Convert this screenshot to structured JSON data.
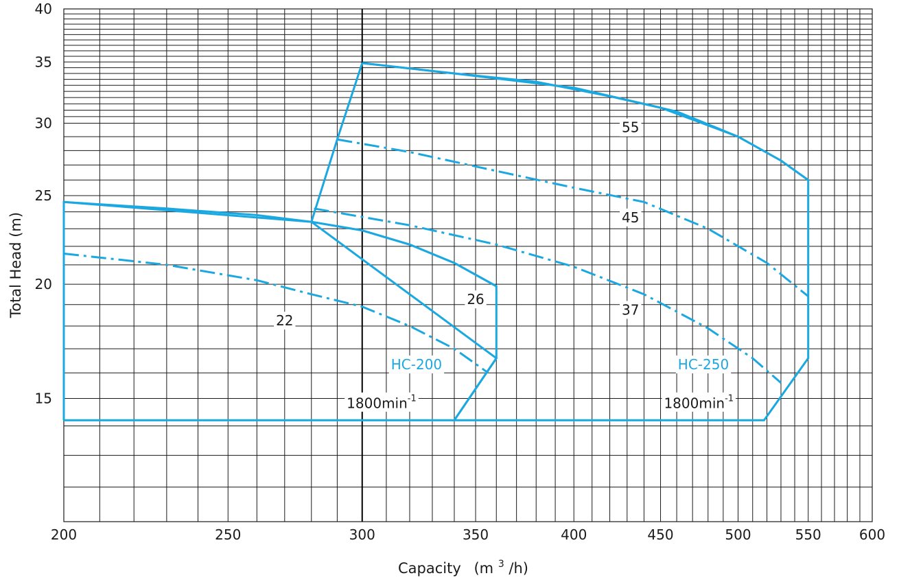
{
  "chart_data": {
    "type": "line",
    "title": "",
    "xlabel": "Capacity",
    "xlabel_unit_base": "(m",
    "xlabel_unit_sup": "3",
    "xlabel_unit_tail": "/h)",
    "ylabel": "Total  Head (m)",
    "xscale": "log",
    "yscale": "log",
    "xlim": [
      200,
      600
    ],
    "ylim": [
      11,
      40
    ],
    "grid": true,
    "x_ticks": [
      200,
      250,
      300,
      350,
      400,
      450,
      500,
      550,
      600
    ],
    "x_tick_labels": [
      "200",
      "250",
      "300",
      "350",
      "400",
      "450",
      "500",
      "550",
      "600"
    ],
    "y_ticks": [
      15,
      20,
      25,
      30,
      35,
      40
    ],
    "y_tick_labels": [
      "15",
      "20",
      "25",
      "30",
      "35",
      "40"
    ],
    "x_minor_grid": [
      210,
      220,
      230,
      240,
      250,
      260,
      270,
      280,
      290,
      300,
      310,
      320,
      330,
      340,
      350,
      360,
      370,
      380,
      390,
      400,
      410,
      420,
      430,
      440,
      450,
      460,
      470,
      480,
      490,
      500,
      510,
      520,
      530,
      540,
      550,
      560,
      570,
      580,
      590,
      600
    ],
    "y_minor_grid": [
      11,
      12,
      13,
      14,
      15,
      16,
      17,
      18,
      19,
      20,
      21,
      22,
      23,
      24,
      25,
      26,
      27,
      28,
      29,
      30,
      31,
      32,
      33,
      34,
      35,
      36,
      37,
      38,
      39,
      40
    ],
    "y_fine_grid": [
      30.5,
      31.5,
      32.5,
      33.5,
      34.5,
      35.5,
      36.5,
      37.5,
      38.5,
      39.5
    ],
    "accent_line_x": 300,
    "colors": {
      "series": "#1ba8e0",
      "grid": "#1a1a1a",
      "text": "#1a1a1a"
    },
    "series": [
      {
        "name": "HC-200",
        "speed_label": "1800min",
        "speed_sup": "-1",
        "color": "#1ba8e0",
        "label_at": [
          323,
          16.3
        ],
        "speed_at": [
          308,
          14.8
        ],
        "envelope": [
          [
            200,
            14.2
          ],
          [
            200,
            24.6
          ],
          [
            280,
            23.4
          ],
          [
            300,
            22.9
          ],
          [
            320,
            22.1
          ],
          [
            340,
            21.1
          ],
          [
            360,
            19.9
          ],
          [
            360,
            16.6
          ],
          [
            340,
            14.2
          ],
          [
            200,
            14.2
          ]
        ],
        "curves": [
          {
            "label": "26",
            "label_at": [
              350,
              19.2
            ],
            "dashed": false,
            "points": [
              [
                200,
                24.6
              ],
              [
                230,
                24.2
              ],
              [
                260,
                23.8
              ],
              [
                280,
                23.4
              ],
              [
                300,
                22.9
              ],
              [
                320,
                22.1
              ],
              [
                340,
                21.1
              ],
              [
                360,
                19.9
              ]
            ]
          },
          {
            "label": "22",
            "label_at": [
              270,
              18.2
            ],
            "dashed": true,
            "points": [
              [
                200,
                21.6
              ],
              [
                230,
                21.0
              ],
              [
                260,
                20.2
              ],
              [
                280,
                19.5
              ],
              [
                300,
                18.9
              ],
              [
                320,
                18.0
              ],
              [
                340,
                17.0
              ],
              [
                356,
                16.0
              ]
            ]
          }
        ]
      },
      {
        "name": "HC-250",
        "speed_label": "1800min",
        "speed_sup": "-1",
        "color": "#1ba8e0",
        "label_at": [
          477,
          16.3
        ],
        "speed_at": [
          474,
          14.8
        ],
        "envelope": [
          [
            300,
            34.9
          ],
          [
            340,
            34.0
          ],
          [
            400,
            32.8
          ],
          [
            450,
            31.2
          ],
          [
            500,
            29.0
          ],
          [
            530,
            27.3
          ],
          [
            550,
            26.0
          ],
          [
            550,
            16.6
          ],
          [
            518,
            14.2
          ],
          [
            340,
            14.2
          ],
          [
            360,
            16.6
          ],
          [
            280,
            23.4
          ],
          [
            290,
            28.8
          ],
          [
            300,
            34.9
          ]
        ],
        "curves": [
          {
            "label": "55",
            "label_at": [
              432,
              29.6
            ],
            "dashed": false,
            "points": [
              [
                300,
                34.9
              ],
              [
                340,
                34.0
              ],
              [
                380,
                33.3
              ],
              [
                420,
                32.1
              ],
              [
                460,
                30.9
              ],
              [
                500,
                29.0
              ],
              [
                530,
                27.3
              ],
              [
                550,
                26.0
              ]
            ]
          },
          {
            "label": "45",
            "label_at": [
              432,
              23.6
            ],
            "dashed": true,
            "points": [
              [
                290,
                28.8
              ],
              [
                320,
                27.9
              ],
              [
                360,
                26.6
              ],
              [
                400,
                25.5
              ],
              [
                440,
                24.6
              ],
              [
                480,
                23.0
              ],
              [
                520,
                21.1
              ],
              [
                550,
                19.4
              ]
            ]
          },
          {
            "label": "37",
            "label_at": [
              432,
              18.7
            ],
            "dashed": true,
            "points": [
              [
                281,
                24.2
              ],
              [
                320,
                23.2
              ],
              [
                360,
                22.1
              ],
              [
                400,
                20.9
              ],
              [
                440,
                19.5
              ],
              [
                480,
                17.9
              ],
              [
                510,
                16.6
              ],
              [
                530,
                15.6
              ]
            ]
          }
        ]
      }
    ]
  }
}
